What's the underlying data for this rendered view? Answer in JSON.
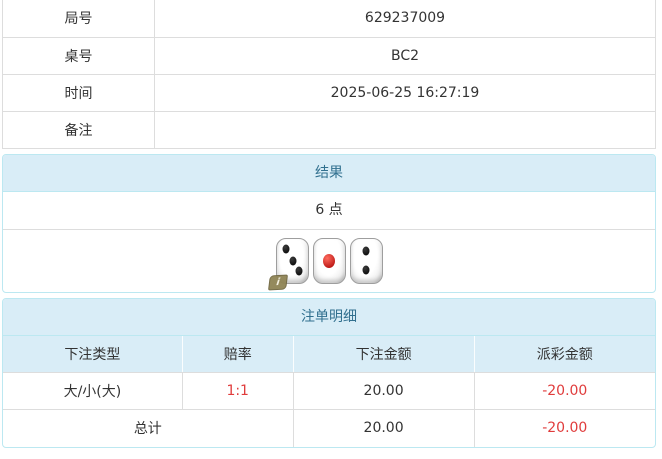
{
  "info_table": {
    "rows": [
      {
        "label": "局号",
        "value": "629237009"
      },
      {
        "label": "桌号",
        "value": "BC2"
      },
      {
        "label": "时间",
        "value": "2025-06-25 16:27:19"
      },
      {
        "label": "备注",
        "value": ""
      }
    ]
  },
  "result_panel": {
    "title": "结果",
    "points": "6 点",
    "dice": [
      {
        "value": 3,
        "pip_color": "black"
      },
      {
        "value": 1,
        "pip_color": "red"
      },
      {
        "value": 2,
        "pip_color": "black"
      }
    ],
    "info_badge": "i"
  },
  "bet_panel": {
    "title": "注单明细",
    "columns": [
      "下注类型",
      "赔率",
      "下注金额",
      "派彩金额"
    ],
    "row": {
      "bet_type": "大/小(大)",
      "odds": "1:1",
      "bet_amount": "20.00",
      "payout": "-20.00"
    },
    "total": {
      "label": "总计",
      "bet_amount": "20.00",
      "payout": "-20.00"
    }
  },
  "colors": {
    "panel_border": "#bce8f1",
    "heading_bg": "#d9edf7",
    "heading_text": "#31708f",
    "grid_border": "#dddddd",
    "body_text": "#333333",
    "negative_red": "#e03c3c"
  }
}
